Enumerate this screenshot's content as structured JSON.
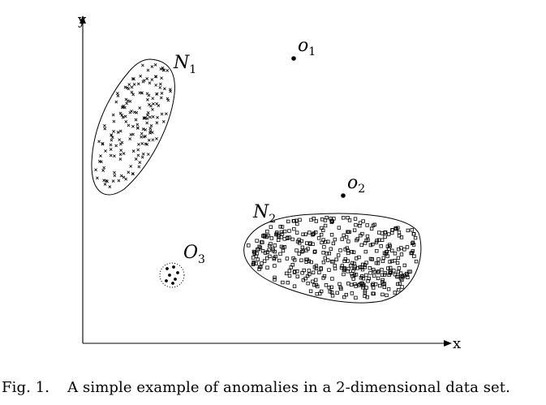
{
  "axes": {
    "x_label": "x",
    "y_label": "y"
  },
  "clusters": [
    {
      "id": "N1",
      "letter": "N",
      "sub": "1",
      "marker": "cross"
    },
    {
      "id": "N2",
      "letter": "N",
      "sub": "2",
      "marker": "square"
    },
    {
      "id": "O3",
      "letter": "O",
      "sub": "3",
      "marker": "dot"
    }
  ],
  "outliers": [
    {
      "id": "o1",
      "letter": "o",
      "sub": "1"
    },
    {
      "id": "o2",
      "letter": "o",
      "sub": "2"
    }
  ],
  "caption": {
    "fig_number": "Fig. 1.",
    "text": "A simple example of anomalies in a 2-dimensional data set."
  }
}
